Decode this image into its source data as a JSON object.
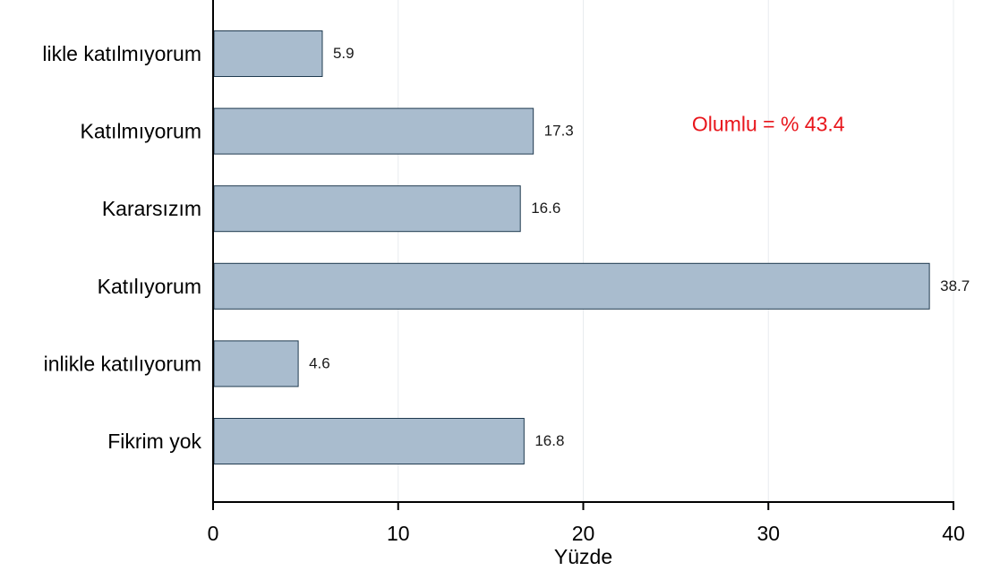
{
  "chart_data": {
    "type": "bar",
    "orientation": "horizontal",
    "categories": [
      "likle katılmıyorum",
      "Katılmıyorum",
      "Kararsızım",
      "Katılıyorum",
      "inlikle katılıyorum",
      "Fikrim yok"
    ],
    "values": [
      5.9,
      17.3,
      16.6,
      38.7,
      4.6,
      16.8
    ],
    "value_labels": [
      "5.9",
      "17.3",
      "16.6",
      "38.7",
      "4.6",
      "16.8"
    ],
    "xlabel": "Yüzde",
    "xlim": [
      0,
      40
    ],
    "xticks": [
      0,
      10,
      20,
      30,
      40
    ],
    "xtick_labels": [
      "0",
      "10",
      "20",
      "30",
      "40"
    ],
    "grid": true,
    "annotation": {
      "text": "Olumlu = % 43.4",
      "color": "#e8151b",
      "x": 30,
      "y": "Katılmıyorum"
    },
    "colors": {
      "bar_fill": "#a9bcce",
      "bar_stroke": "#1f3a4f",
      "grid": "#e8ecef",
      "axis": "#000000"
    }
  }
}
